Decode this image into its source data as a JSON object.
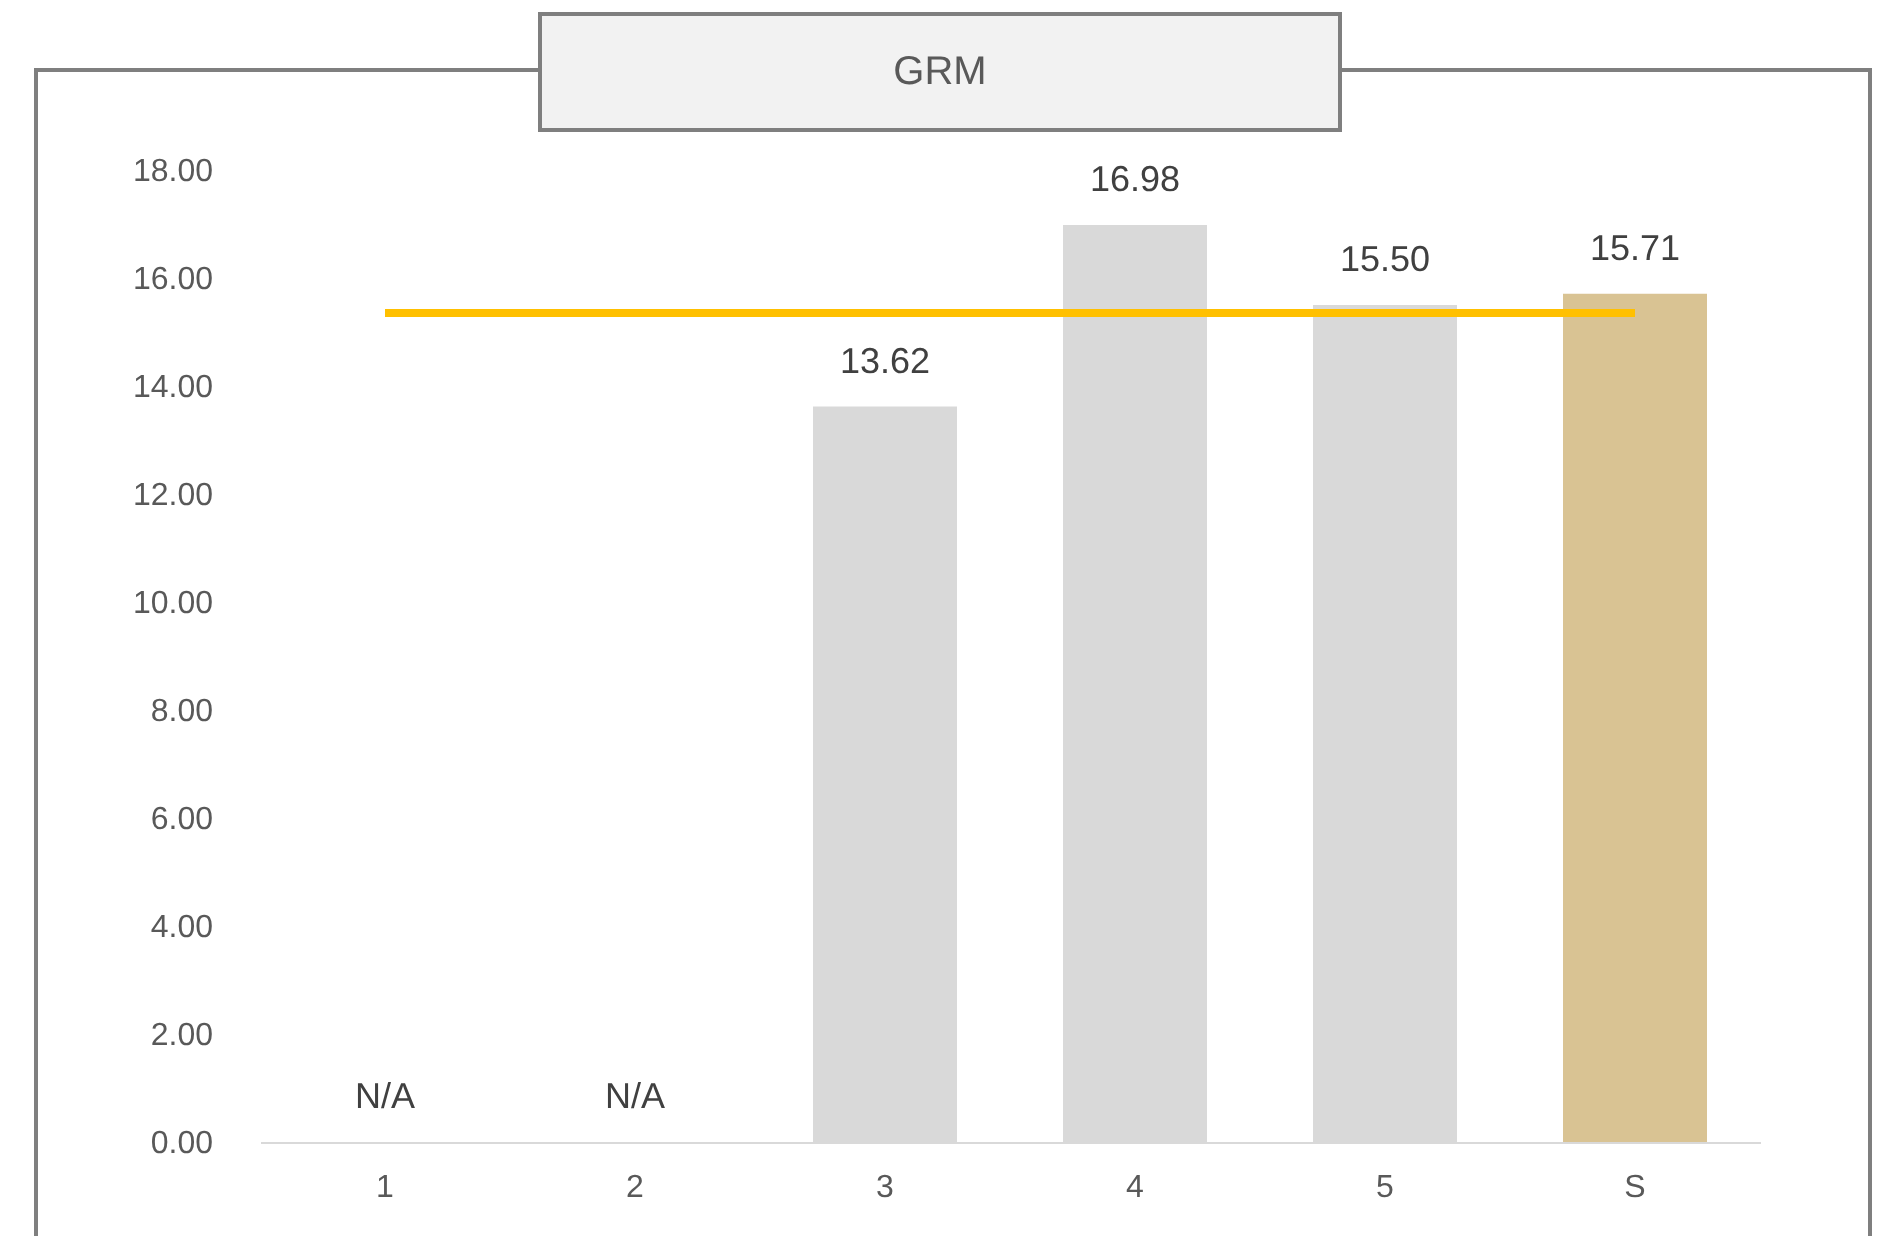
{
  "chart_data": {
    "type": "bar",
    "title": "GRM",
    "categories": [
      "1",
      "2",
      "3",
      "4",
      "5",
      "S"
    ],
    "series": [
      {
        "values": [
          null,
          null,
          13.62,
          16.98,
          15.5,
          15.71
        ],
        "colors": [
          "#d9d9d9",
          "#d9d9d9",
          "#d9d9d9",
          "#d9d9d9",
          "#d9d9d9",
          "#d9c393"
        ],
        "value_labels": [
          "N/A",
          "N/A",
          "13.62",
          "16.98",
          "15.50",
          "15.71"
        ]
      },
      {
        "type": "line",
        "color": "#ffc000",
        "values": [
          15.35,
          15.35,
          15.35,
          15.35,
          15.35,
          15.35
        ]
      }
    ],
    "ylim": [
      0,
      18
    ],
    "yticks": [
      {
        "value": 0,
        "label": "0.00"
      },
      {
        "value": 2,
        "label": "2.00"
      },
      {
        "value": 4,
        "label": "4.00"
      },
      {
        "value": 6,
        "label": "6.00"
      },
      {
        "value": 8,
        "label": "8.00"
      },
      {
        "value": 10,
        "label": "10.00"
      },
      {
        "value": 12,
        "label": "12.00"
      },
      {
        "value": 14,
        "label": "14.00"
      },
      {
        "value": 16,
        "label": "16.00"
      },
      {
        "value": 18,
        "label": "18.00"
      }
    ],
    "grid": false
  }
}
